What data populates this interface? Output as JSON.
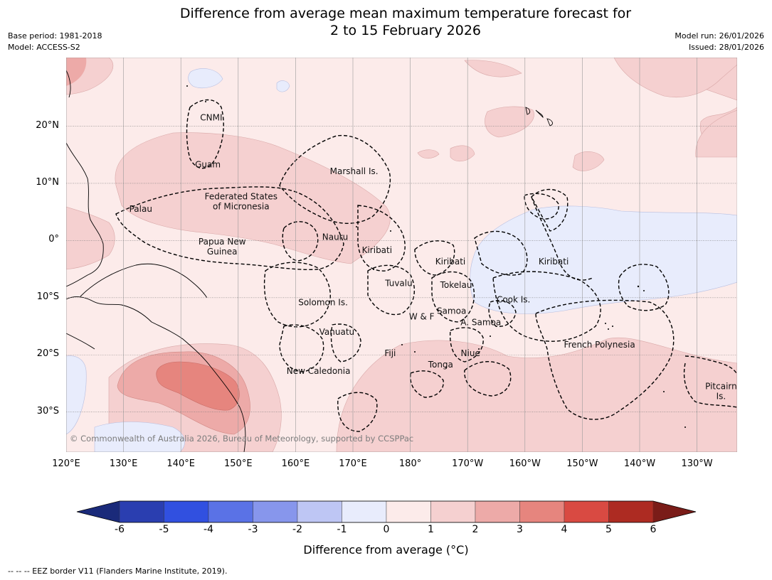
{
  "title": {
    "line1": "Difference from average mean maximum temperature forecast for",
    "line2": "2 to 15 February 2026"
  },
  "meta": {
    "base_period": "Base period: 1981-2018",
    "model": "Model: ACCESS-S2",
    "model_run": "Model run: 26/01/2026",
    "issued": "Issued: 28/01/2026"
  },
  "map": {
    "lon_range": [
      120,
      237
    ],
    "lat_range": [
      -37,
      32
    ],
    "lat_ticks": [
      {
        "label": "20°N",
        "lat": 20
      },
      {
        "label": "10°N",
        "lat": 10
      },
      {
        "label": "0°",
        "lat": 0
      },
      {
        "label": "10°S",
        "lat": -10
      },
      {
        "label": "20°S",
        "lat": -20
      },
      {
        "label": "30°S",
        "lat": -30
      }
    ],
    "lon_ticks": [
      {
        "label": "120°E",
        "lon": 120
      },
      {
        "label": "130°E",
        "lon": 130
      },
      {
        "label": "140°E",
        "lon": 140
      },
      {
        "label": "150°E",
        "lon": 150
      },
      {
        "label": "160°E",
        "lon": 160
      },
      {
        "label": "170°E",
        "lon": 170
      },
      {
        "label": "180°",
        "lon": 180
      },
      {
        "label": "170°W",
        "lon": 190
      },
      {
        "label": "160°W",
        "lon": 200
      },
      {
        "label": "150°W",
        "lon": 210
      },
      {
        "label": "140°W",
        "lon": 220
      },
      {
        "label": "130°W",
        "lon": 230
      }
    ],
    "gridlines": true,
    "regions": [
      {
        "lines": [
          "CNMI"
        ],
        "lon": 145.3,
        "lat": 21
      },
      {
        "lines": [
          "Guam"
        ],
        "lon": 144.7,
        "lat": 12.8
      },
      {
        "lines": [
          "Marshall Is."
        ],
        "lon": 170.2,
        "lat": 11.6
      },
      {
        "lines": [
          "Federated States",
          "of Micronesia"
        ],
        "lon": 150.5,
        "lat": 7.2
      },
      {
        "lines": [
          "Palau"
        ],
        "lon": 133,
        "lat": 5
      },
      {
        "lines": [
          "Papua New",
          "Guinea"
        ],
        "lon": 147.2,
        "lat": -0.7
      },
      {
        "lines": [
          "Nauru"
        ],
        "lon": 166.9,
        "lat": 0.1
      },
      {
        "lines": [
          "Kiribati"
        ],
        "lon": 174.2,
        "lat": -2.2
      },
      {
        "lines": [
          "Kiribati"
        ],
        "lon": 187,
        "lat": -4.2
      },
      {
        "lines": [
          "Kiribati"
        ],
        "lon": 205,
        "lat": -4.2
      },
      {
        "lines": [
          "Tuvalu"
        ],
        "lon": 178,
        "lat": -8
      },
      {
        "lines": [
          "Tokelau"
        ],
        "lon": 188,
        "lat": -8.3
      },
      {
        "lines": [
          "Cook Is."
        ],
        "lon": 198,
        "lat": -10.8
      },
      {
        "lines": [
          "Solomon Is."
        ],
        "lon": 164.8,
        "lat": -11.3
      },
      {
        "lines": [
          "Samoa"
        ],
        "lon": 187.2,
        "lat": -12.8
      },
      {
        "lines": [
          "W & F"
        ],
        "lon": 182,
        "lat": -13.8
      },
      {
        "lines": [
          "A. Samoa"
        ],
        "lon": 192.3,
        "lat": -14.8
      },
      {
        "lines": [
          "Vanuatu"
        ],
        "lon": 167.2,
        "lat": -16.5
      },
      {
        "lines": [
          "French Polynesia"
        ],
        "lon": 213,
        "lat": -18.7
      },
      {
        "lines": [
          "Fiji"
        ],
        "lon": 176.5,
        "lat": -20.2
      },
      {
        "lines": [
          "Niue"
        ],
        "lon": 190.5,
        "lat": -20.2
      },
      {
        "lines": [
          "Tonga"
        ],
        "lon": 185.3,
        "lat": -22.2
      },
      {
        "lines": [
          "New Caledonia"
        ],
        "lon": 164,
        "lat": -23.3
      },
      {
        "lines": [
          "Pitcairn",
          "Is."
        ],
        "lon": 234.2,
        "lat": -26
      }
    ],
    "copyright": "© Commonwealth of Australia 2026, Bureau of Meteorology, supported by CCSPPac"
  },
  "colorbar": {
    "tick_labels": [
      "-6",
      "-5",
      "-4",
      "-3",
      "-2",
      "-1",
      "0",
      "1",
      "2",
      "3",
      "4",
      "5",
      "6"
    ],
    "under_color": "#1a2a7a",
    "bin_colors": [
      "#2a3eb0",
      "#3150e0",
      "#5a72e6",
      "#8796ec",
      "#bec6f4",
      "#e8ecfc",
      "#fcebea",
      "#f5d0d0",
      "#edaaa8",
      "#e6857e",
      "#d94a42",
      "#ad2b22"
    ],
    "over_color": "#7a1c18",
    "title": "Difference from average (°C)"
  },
  "footnote": "--  --  -- EEZ border V11 (Flanders Marine Institute, 2019)."
}
